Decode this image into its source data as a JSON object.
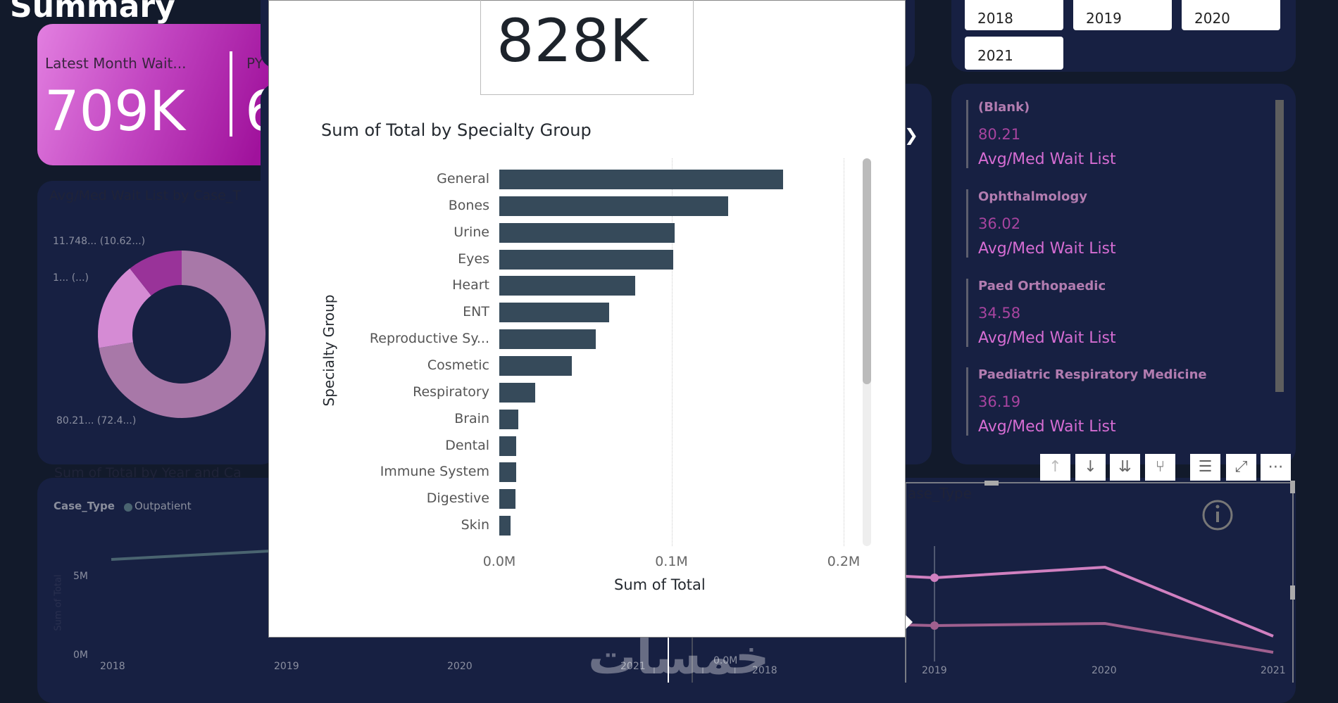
{
  "page_title": "Summary",
  "kpi": {
    "label": "Latest Month Wait...",
    "value": "709K",
    "py_label": "PY",
    "py_value": "6"
  },
  "donut": {
    "title": "Avg/Med Wait List by Case_T",
    "labels": [
      "11.748... (10.62...)",
      "1... (...)",
      "80.21... (72.4...)"
    ],
    "segments": [
      {
        "percent": 72.4,
        "color": "#a878a8"
      },
      {
        "percent": 16.98,
        "color": "#d58bd4"
      },
      {
        "percent": 10.62,
        "color": "#993399"
      }
    ]
  },
  "line_left": {
    "title": "Sum of Total by Year and Ca",
    "legend_title": "Case_Type",
    "legend_item": "Outpatient",
    "legend_color": "#4a6470",
    "ylabel": "Sum of Total",
    "yticks": [
      "5M",
      "0M"
    ],
    "xticks": [
      "2018",
      "2019",
      "2020",
      "2021"
    ]
  },
  "line_right": {
    "title": "ase_Type",
    "xticks": [
      "2018",
      "2019",
      "2020",
      "2021"
    ],
    "ytick": "0.0M",
    "colors": [
      "#d080c0",
      "#a0608f"
    ]
  },
  "popup": {
    "kpi_value": "828K",
    "chart_data": {
      "type": "bar",
      "orientation": "horizontal",
      "title": "Sum of Total by Specialty Group",
      "xlabel": "Sum of Total",
      "ylabel": "Specialty Group",
      "categories": [
        "General",
        "Bones",
        "Urine",
        "Eyes",
        "Heart",
        "ENT",
        "Reproductive Sy...",
        "Cosmetic",
        "Respiratory",
        "Brain",
        "Dental",
        "Immune System",
        "Digestive",
        "Skin"
      ],
      "values": [
        0.165,
        0.133,
        0.102,
        0.101,
        0.079,
        0.064,
        0.056,
        0.042,
        0.021,
        0.011,
        0.01,
        0.0099,
        0.0095,
        0.0065
      ],
      "unit": "M",
      "xlim": [
        0,
        0.2
      ],
      "xticks": [
        "0.0M",
        "0.1M",
        "0.2M"
      ],
      "grid": true,
      "bar_color": "#364a5a"
    }
  },
  "years": [
    "2018",
    "2019",
    "2020",
    "2021"
  ],
  "list": [
    {
      "label": "(Blank)",
      "value": "80.21",
      "caption": "Avg/Med Wait List"
    },
    {
      "label": "Ophthalmology",
      "value": "36.02",
      "caption": "Avg/Med Wait List"
    },
    {
      "label": "Paed Orthopaedic",
      "value": "34.58",
      "caption": "Avg/Med Wait List"
    },
    {
      "label": "Paediatric Respiratory Medicine",
      "value": "36.19",
      "caption": "Avg/Med Wait List"
    }
  ],
  "toolbar": [
    {
      "icon": "arrow-up-icon",
      "glyph": "↑"
    },
    {
      "icon": "arrow-down-icon",
      "glyph": "↓"
    },
    {
      "icon": "double-arrow-down-icon",
      "glyph": "⇊"
    },
    {
      "icon": "expand-hierarchy-icon",
      "glyph": "⑂"
    },
    {
      "icon": "filter-icon",
      "glyph": "☰"
    },
    {
      "icon": "focus-mode-icon",
      "glyph": "⤢"
    },
    {
      "icon": "more-options-icon",
      "glyph": "⋯"
    }
  ],
  "watermark": "خمسات"
}
